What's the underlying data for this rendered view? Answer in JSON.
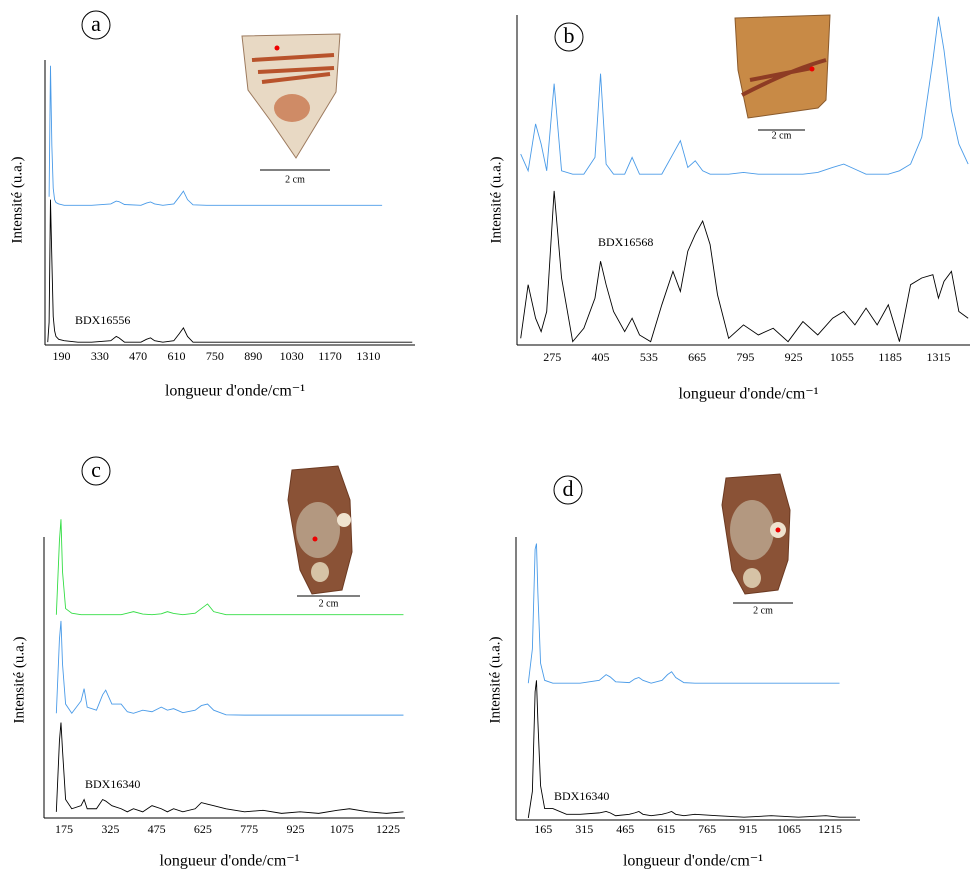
{
  "chart_data": [
    {
      "type": "line",
      "panel_label": "a",
      "ylabel": "Intensité (u.a.)",
      "xlabel": "longueur d'onde/cm⁻¹",
      "scale_label": "2 cm",
      "xlim": [
        130,
        1480
      ],
      "ylim": [
        0,
        100
      ],
      "xticks": [
        190,
        330,
        470,
        610,
        750,
        890,
        1030,
        1170,
        1310
      ],
      "x": [
        140,
        145,
        150,
        155,
        160,
        165,
        170,
        180,
        200,
        250,
        300,
        370,
        390,
        400,
        420,
        480,
        500,
        515,
        530,
        560,
        600,
        620,
        635,
        650,
        670,
        720,
        800,
        900,
        1000,
        1100,
        1200,
        1300,
        1360,
        1400,
        1470
      ],
      "series": [
        {
          "color": "#4a9be8",
          "values": [
            null,
            52,
            98,
            70,
            55,
            51,
            50,
            49.5,
            49,
            49,
            49,
            49.5,
            50.5,
            50.3,
            49.3,
            49,
            49.8,
            50.2,
            49.5,
            49,
            49.5,
            52,
            54,
            51,
            49.2,
            49,
            49,
            49,
            49,
            49,
            49,
            49,
            49,
            null,
            null
          ]
        },
        {
          "name": "BDX16556",
          "color": "#000000",
          "values": [
            1,
            8,
            51,
            30,
            10,
            5,
            3,
            2,
            1.5,
            1,
            1,
            1.5,
            3,
            2.5,
            1,
            1,
            2,
            2.5,
            1.5,
            1,
            1.5,
            4,
            6,
            3,
            1,
            1,
            1,
            1,
            1,
            1,
            1,
            1,
            1,
            1,
            1
          ]
        }
      ]
    },
    {
      "type": "line",
      "panel_label": "b",
      "ylabel": "Intensité (u.a.)",
      "xlabel": "longueur d'onde/cm⁻¹",
      "scale_label": "2 cm",
      "xlim": [
        180,
        1400
      ],
      "ylim": [
        0,
        100
      ],
      "xticks": [
        275,
        405,
        535,
        665,
        795,
        925,
        1055,
        1185,
        1315
      ],
      "x": [
        190,
        210,
        230,
        245,
        260,
        280,
        300,
        330,
        360,
        390,
        405,
        420,
        440,
        470,
        490,
        510,
        540,
        570,
        600,
        620,
        640,
        660,
        680,
        700,
        720,
        750,
        790,
        830,
        870,
        910,
        950,
        990,
        1030,
        1060,
        1090,
        1120,
        1150,
        1180,
        1210,
        1240,
        1270,
        1300,
        1315,
        1330,
        1350,
        1370,
        1395
      ],
      "series": [
        {
          "color": "#4a9be8",
          "values": [
            57,
            52,
            66,
            60,
            52,
            78,
            52,
            51,
            51,
            56,
            81,
            54,
            51,
            51,
            56,
            51,
            51,
            51,
            57,
            61,
            53,
            55,
            52,
            51,
            51,
            51,
            51.5,
            51,
            51,
            51,
            51,
            51.5,
            53,
            54,
            52.5,
            51,
            51,
            51,
            52,
            54,
            62,
            85,
            98,
            88,
            70,
            60,
            54
          ]
        },
        {
          "name": "BDX16568",
          "color": "#000000",
          "values": [
            2,
            18,
            8,
            4,
            10,
            46,
            20,
            1,
            5,
            14,
            25,
            18,
            10,
            4,
            8,
            3,
            1,
            12,
            22,
            16,
            28,
            33,
            37,
            30,
            15,
            2,
            6,
            3,
            5,
            1,
            7,
            3,
            8,
            10,
            6,
            11,
            6,
            12,
            1,
            18,
            20,
            21,
            14,
            19,
            22,
            10,
            8
          ]
        }
      ]
    },
    {
      "type": "line",
      "panel_label": "c",
      "ylabel": "Intensité (u.a.)",
      "xlabel": "longueur d'onde/cm⁻¹",
      "scale_label": "2 cm",
      "xlim": [
        110,
        1280
      ],
      "ylim": [
        0,
        100
      ],
      "xticks": [
        175,
        325,
        475,
        625,
        775,
        925,
        1075,
        1225
      ],
      "x": [
        130,
        150,
        160,
        165,
        170,
        180,
        200,
        230,
        240,
        250,
        280,
        300,
        310,
        330,
        360,
        380,
        400,
        430,
        460,
        490,
        510,
        530,
        560,
        600,
        620,
        640,
        660,
        700,
        760,
        820,
        880,
        940,
        1000,
        1060,
        1100,
        1160,
        1220,
        1275
      ],
      "series": [
        {
          "color": "#33dd44",
          "values": [
            null,
            66,
            90,
            97,
            80,
            68,
            66.5,
            66,
            66,
            66,
            66,
            66,
            66,
            66,
            66,
            66.5,
            67,
            66.2,
            66,
            66.3,
            67,
            66.4,
            66,
            66.5,
            68,
            69.5,
            67,
            66,
            66,
            66,
            66,
            66,
            66,
            66,
            66,
            66,
            66,
            66
          ]
        },
        {
          "color": "#4a9be8",
          "values": [
            null,
            34,
            58,
            64,
            50,
            37,
            34,
            38,
            42,
            36,
            35,
            40,
            41.5,
            37,
            37,
            34.5,
            34,
            35,
            34.5,
            36,
            35,
            35.5,
            34.2,
            35,
            36.5,
            37,
            35,
            33.5,
            33.4,
            33.4,
            33.4,
            33.4,
            33.4,
            33.4,
            33.4,
            33.4,
            33.4,
            33.4
          ]
        },
        {
          "name": "BDX16340",
          "color": "#000000",
          "values": [
            null,
            2,
            25,
            31,
            22,
            6,
            3,
            4,
            6,
            3,
            3,
            6,
            5.5,
            4,
            3,
            2,
            3,
            2,
            4,
            3,
            2,
            3,
            2,
            3,
            5,
            4.5,
            4,
            3,
            2,
            2.5,
            1.5,
            2,
            1.5,
            2.5,
            3,
            2,
            1.5,
            2
          ]
        }
      ]
    },
    {
      "type": "line",
      "panel_label": "d",
      "ylabel": "Intensité (u.a.)",
      "xlabel": "longueur d'onde/cm⁻¹",
      "scale_label": "2 cm",
      "xlim": [
        65,
        1325
      ],
      "ylim": [
        0,
        100
      ],
      "xticks": [
        165,
        315,
        465,
        615,
        765,
        915,
        1065,
        1215
      ],
      "x": [
        110,
        125,
        135,
        140,
        145,
        155,
        170,
        200,
        250,
        300,
        370,
        395,
        410,
        430,
        480,
        500,
        515,
        530,
        560,
        600,
        620,
        635,
        650,
        680,
        720,
        800,
        900,
        1000,
        1100,
        1200,
        1250,
        1310
      ],
      "series": [
        {
          "color": "#4a9be8",
          "values": [
            48,
            60,
            95,
            97,
            80,
            55,
            49,
            48,
            48,
            48,
            49,
            51,
            50.2,
            48.5,
            48.2,
            49.5,
            50,
            49,
            48,
            49,
            51,
            52,
            50,
            48.2,
            48,
            48,
            48,
            48,
            48,
            48,
            48,
            null
          ]
        },
        {
          "name": "BDX16340",
          "color": "#000000",
          "values": [
            0.7,
            10,
            45,
            49,
            35,
            12,
            4,
            4,
            2,
            2,
            2.5,
            3,
            2.5,
            1.5,
            2,
            2.5,
            3,
            2,
            1.5,
            2,
            2.5,
            3,
            2,
            1.5,
            2,
            1.5,
            1,
            1.5,
            1,
            1.5,
            1,
            1
          ]
        }
      ]
    }
  ]
}
